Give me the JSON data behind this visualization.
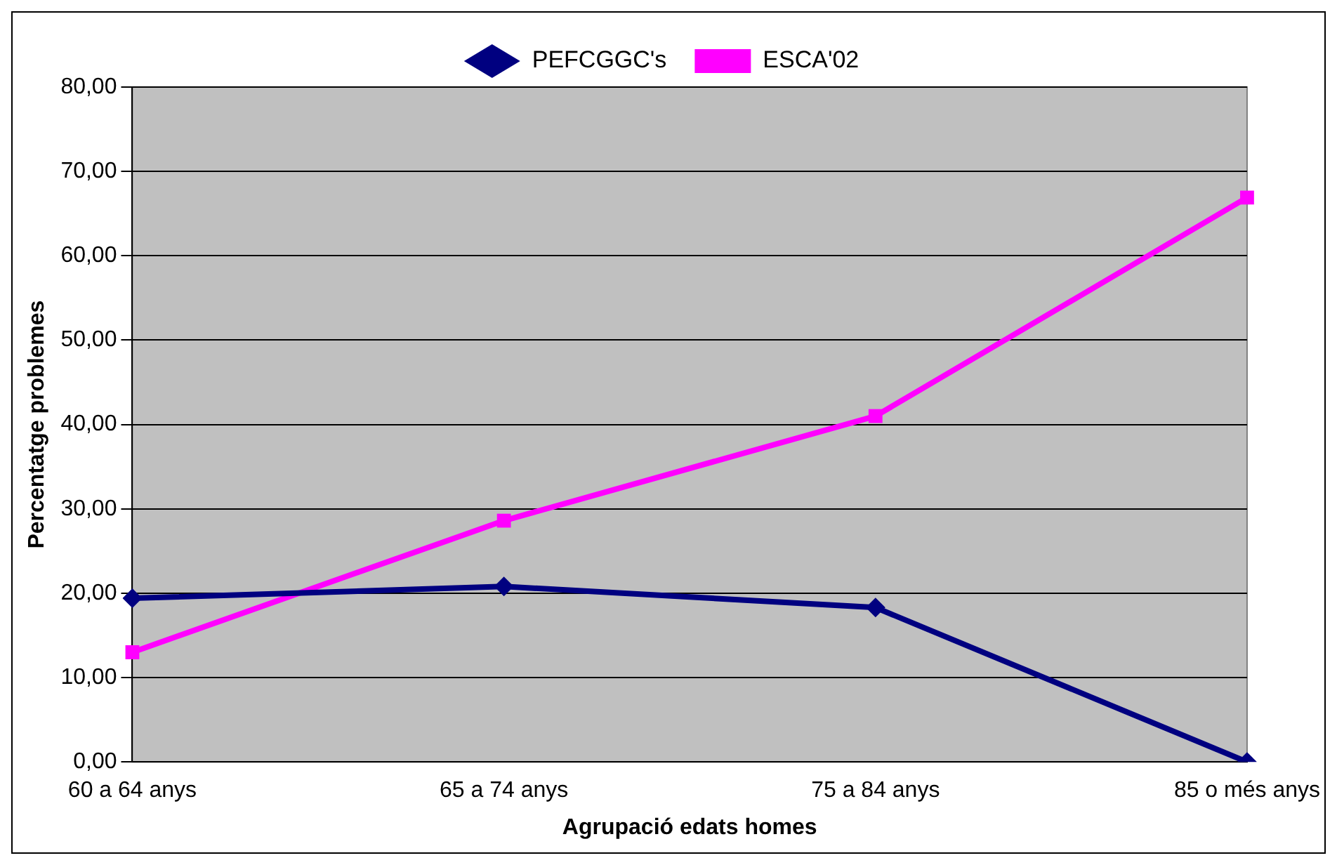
{
  "chart_data": {
    "type": "line",
    "xlabel": "Agrupació edats homes",
    "ylabel": "Percentatge problemes",
    "categories": [
      "60 a 64 anys",
      "65 a 74 anys",
      "75 a 84 anys",
      "85 o més anys"
    ],
    "series": [
      {
        "name": "PEFCGGC's",
        "color": "#000080",
        "marker": "diamond",
        "values": [
          19.4,
          20.8,
          18.3,
          0
        ]
      },
      {
        "name": "ESCA'02",
        "color": "#ff00ff",
        "marker": "square",
        "values": [
          13.0,
          28.6,
          41.0,
          66.9
        ]
      }
    ],
    "ylim": [
      0,
      80
    ],
    "yticks": [
      {
        "value": 0,
        "label": "0,00"
      },
      {
        "value": 10,
        "label": "10,00"
      },
      {
        "value": 20,
        "label": "20,00"
      },
      {
        "value": 30,
        "label": "30,00"
      },
      {
        "value": 40,
        "label": "40,00"
      },
      {
        "value": 50,
        "label": "50,00"
      },
      {
        "value": 60,
        "label": "60,00"
      },
      {
        "value": 70,
        "label": "70,00"
      },
      {
        "value": 80,
        "label": "80,00"
      }
    ],
    "grid": "y",
    "legend": "top",
    "line_style": "solid"
  }
}
